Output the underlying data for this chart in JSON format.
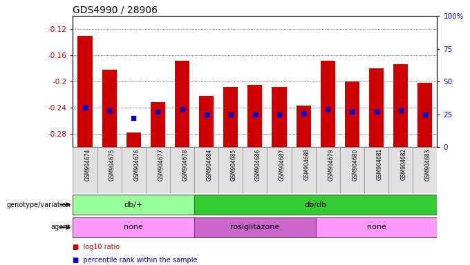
{
  "title": "GDS4990 / 28906",
  "samples": [
    "GSM904674",
    "GSM904675",
    "GSM904676",
    "GSM904677",
    "GSM904678",
    "GSM904684",
    "GSM904685",
    "GSM904686",
    "GSM904687",
    "GSM904688",
    "GSM904679",
    "GSM904680",
    "GSM904681",
    "GSM904682",
    "GSM904683"
  ],
  "log10_ratio": [
    -0.13,
    -0.182,
    -0.278,
    -0.232,
    -0.168,
    -0.222,
    -0.208,
    -0.205,
    -0.208,
    -0.237,
    -0.168,
    -0.2,
    -0.18,
    -0.174,
    -0.202
  ],
  "percentile": [
    30,
    28,
    22,
    27,
    29,
    25,
    25,
    25,
    25,
    26,
    29,
    27,
    27,
    28,
    25
  ],
  "ylim_left": [
    -0.3,
    -0.1
  ],
  "yticks_left": [
    -0.28,
    -0.24,
    -0.2,
    -0.16,
    -0.12
  ],
  "right_axis_ticks": [
    0,
    25,
    50,
    75,
    100
  ],
  "right_axis_labels": [
    "0",
    "25",
    "50",
    "75",
    "100%"
  ],
  "bar_color": "#cc0000",
  "dot_color": "#0000cc",
  "grid_color": "#000000",
  "bg_color": "#ffffff",
  "genotype_groups": [
    {
      "label": "db/+",
      "start": 0,
      "end": 5,
      "color": "#99ff99"
    },
    {
      "label": "db/db",
      "start": 5,
      "end": 15,
      "color": "#33cc33"
    }
  ],
  "agent_groups": [
    {
      "label": "none",
      "start": 0,
      "end": 5,
      "color": "#ff99ff"
    },
    {
      "label": "rosiglitazone",
      "start": 5,
      "end": 10,
      "color": "#cc66cc"
    },
    {
      "label": "none",
      "start": 10,
      "end": 15,
      "color": "#ff99ff"
    }
  ],
  "left_label_color": "#cc0000",
  "right_label_color": "#0000cc",
  "bar_width": 0.6,
  "tick_fontsize": 7.5
}
